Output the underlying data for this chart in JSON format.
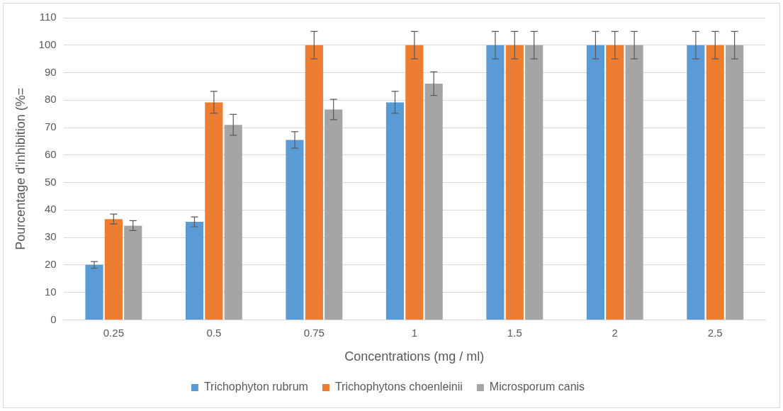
{
  "chart_data": {
    "type": "bar",
    "xlabel": "Concentrations (mg / ml)",
    "ylabel": "Pourcentage d'inhibition (%=",
    "categories": [
      "0.25",
      "0.5",
      "0.75",
      "1",
      "1.5",
      "2",
      "2.5"
    ],
    "series": [
      {
        "name": "Trichophyton rubrum",
        "color": "#5b9bd5",
        "values": [
          20,
          35.7,
          65.5,
          79.2,
          100,
          100,
          100
        ],
        "errors": [
          1.2,
          1.8,
          3,
          4,
          5,
          5,
          5
        ]
      },
      {
        "name": "Trichophytons choenleinii",
        "color": "#ed7d31",
        "values": [
          36.7,
          79.2,
          100,
          100,
          100,
          100,
          100
        ],
        "errors": [
          1.8,
          4,
          5,
          5,
          5,
          5,
          5
        ]
      },
      {
        "name": "Microsporum canis",
        "color": "#a5a5a5",
        "values": [
          34.3,
          71,
          76.6,
          86,
          100,
          100,
          100
        ],
        "errors": [
          1.8,
          3.8,
          3.7,
          4.3,
          5,
          5,
          5
        ]
      }
    ],
    "ylim": [
      0,
      110
    ],
    "yticks": [
      0,
      10,
      20,
      30,
      40,
      50,
      60,
      70,
      80,
      90,
      100,
      110
    ],
    "grid": "y",
    "legend": "bottom"
  }
}
